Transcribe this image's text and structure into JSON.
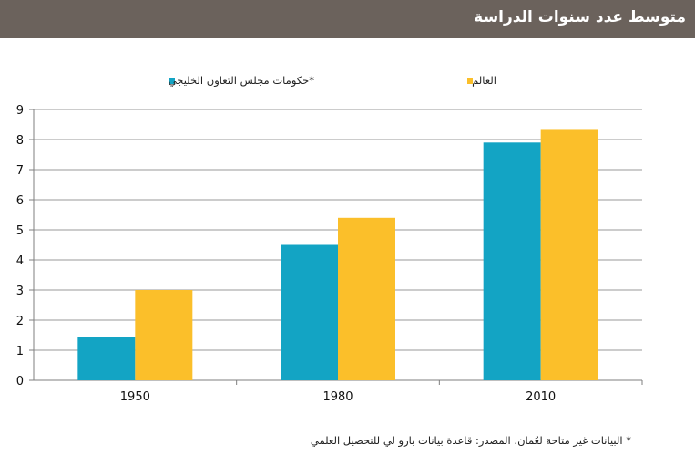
{
  "header": {
    "title": "متوسط عدد سنوات الدراسة"
  },
  "colors": {
    "header_bg": "#6b625c",
    "series_gcc": "#13a4c4",
    "series_world": "#fbbf2a",
    "grid": "#9a9a9a"
  },
  "chart_data": {
    "type": "bar",
    "title": "متوسط عدد سنوات الدراسة",
    "categories": [
      "1950",
      "1980",
      "2010"
    ],
    "series": [
      {
        "name": "حكومات مجلس التعاون الخليجي*",
        "color": "#13a4c4",
        "values": [
          1.45,
          4.5,
          7.9
        ]
      },
      {
        "name": "العالم",
        "color": "#fbbf2a",
        "values": [
          3.0,
          5.4,
          8.35
        ]
      }
    ],
    "xlabel": "",
    "ylabel": "",
    "ylim": [
      0,
      9
    ],
    "yticks": [
      0,
      1,
      2,
      3,
      4,
      5,
      6,
      7,
      8,
      9
    ],
    "grid": true,
    "legend_position": "top"
  },
  "footnote": "* البيانات غير متاحة لعُمان. المصدر: قاعدة بيانات بارو لي للتحصيل العلمي"
}
